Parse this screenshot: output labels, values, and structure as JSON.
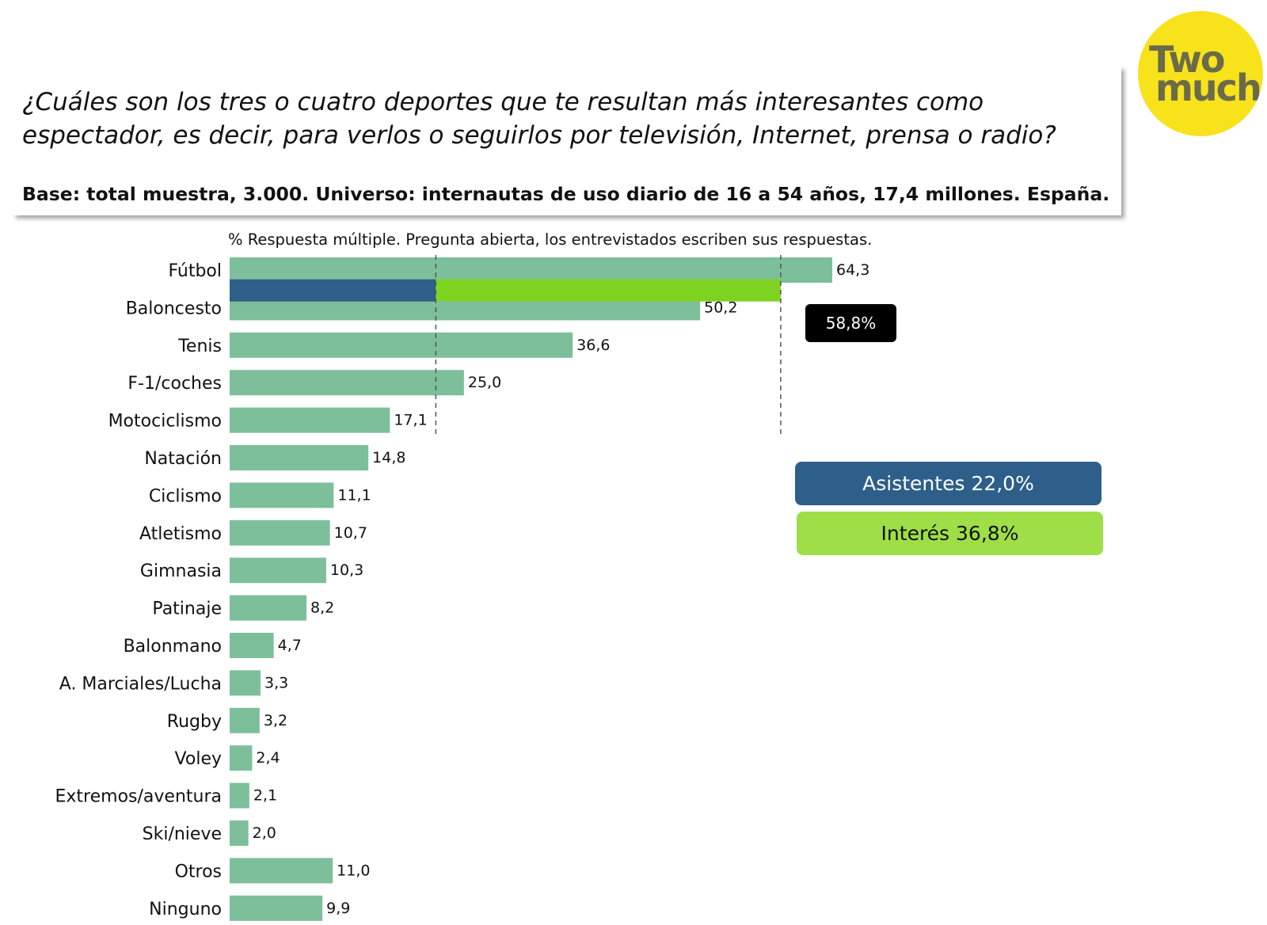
{
  "header": {
    "question": "¿Cuáles son los tres o cuatro deportes que te resultan más interesantes como espectador, es decir, para verlos o seguirlos por televisión, Internet, prensa o radio?",
    "base": "Base: total muestra, 3.000. Universo: internautas de uso diario de 16 a 54 años, 17,4 millones. España."
  },
  "logo": {
    "line1": "Two",
    "line2": "much",
    "color": "#f7e21c"
  },
  "chart_data": {
    "type": "bar",
    "orientation": "horizontal",
    "title": "% Respuesta múltiple. Pregunta abierta, los entrevistados escriben sus respuestas.",
    "categories": [
      "Fútbol",
      "Baloncesto",
      "Tenis",
      "F-1/coches",
      "Motociclismo",
      "Natación",
      "Ciclismo",
      "Atletismo",
      "Gimnasia",
      "Patinaje",
      "Balonmano",
      "A. Marciales/Lucha",
      "Rugby",
      "Voley",
      "Extremos/aventura",
      "Ski/nieve",
      "Otros",
      "Ninguno"
    ],
    "values": [
      64.3,
      50.2,
      36.6,
      25.0,
      17.1,
      14.8,
      11.1,
      10.7,
      10.3,
      8.2,
      4.7,
      3.3,
      3.2,
      2.4,
      2.1,
      2.0,
      11.0,
      9.9
    ],
    "value_labels": [
      "64,3",
      "50,2",
      "36,6",
      "25,0",
      "17,1",
      "14,8",
      "11,1",
      "10,7",
      "10,3",
      "8,2",
      "4,7",
      "3,3",
      "3,2",
      "2,4",
      "2,1",
      "2,0",
      "11,0",
      "9,9"
    ],
    "xlim": [
      0,
      64.3
    ],
    "bar_color": "#7dbf9a",
    "breakdown": {
      "segments": [
        {
          "name": "Asistentes",
          "value": 22.0,
          "color": "#2d5f8a"
        },
        {
          "name": "Interés",
          "value": 36.8,
          "color": "#7ed321"
        }
      ],
      "total": 58.8
    },
    "legend": {
      "total_label": "58,8%",
      "asistentes_label": "Asistentes 22,0%",
      "interes_label": "Interés 36,8%",
      "asistentes_color": "#2d5f8a",
      "interes_color": "#9ede47"
    }
  }
}
